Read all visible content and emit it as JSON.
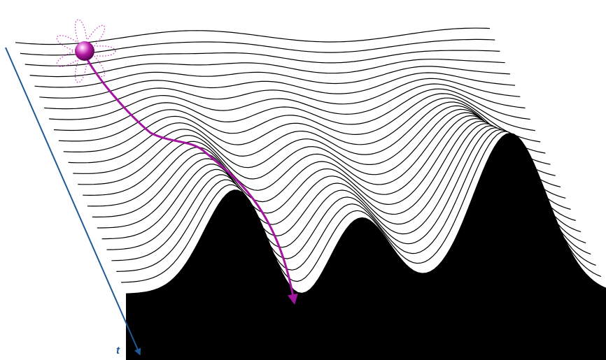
{
  "diagram": {
    "time_axis": {
      "label": "t",
      "color": "#1f5a96"
    },
    "surface": {
      "stroke_color": "#000000",
      "fill_color": "#ffffff",
      "base_color": "#000000"
    },
    "trajectory": {
      "color": "#a3169e",
      "ball_color": "#a3169e",
      "halo_color": "#c03ab8"
    }
  }
}
